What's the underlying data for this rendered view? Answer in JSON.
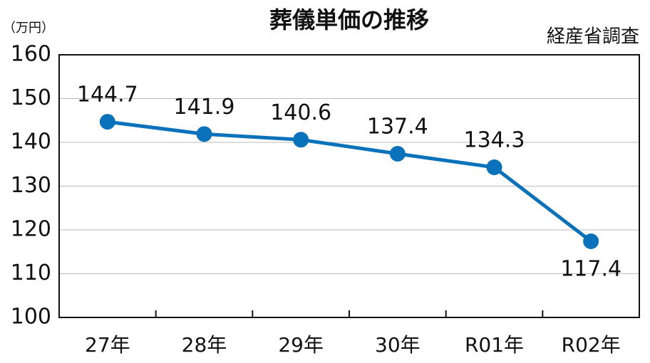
{
  "chart_data": {
    "type": "line",
    "title": "葬儀単価の推移",
    "y_unit": "（万円）",
    "source": "経産省調査",
    "categories": [
      "27年",
      "28年",
      "29年",
      "30年",
      "R01年",
      "R02年"
    ],
    "values": [
      144.7,
      141.9,
      140.6,
      137.4,
      134.3,
      117.4
    ],
    "color": "#0a72ba",
    "ylim": [
      100,
      160
    ],
    "yticks": [
      100,
      110,
      120,
      130,
      140,
      150,
      160
    ],
    "grid": true
  }
}
